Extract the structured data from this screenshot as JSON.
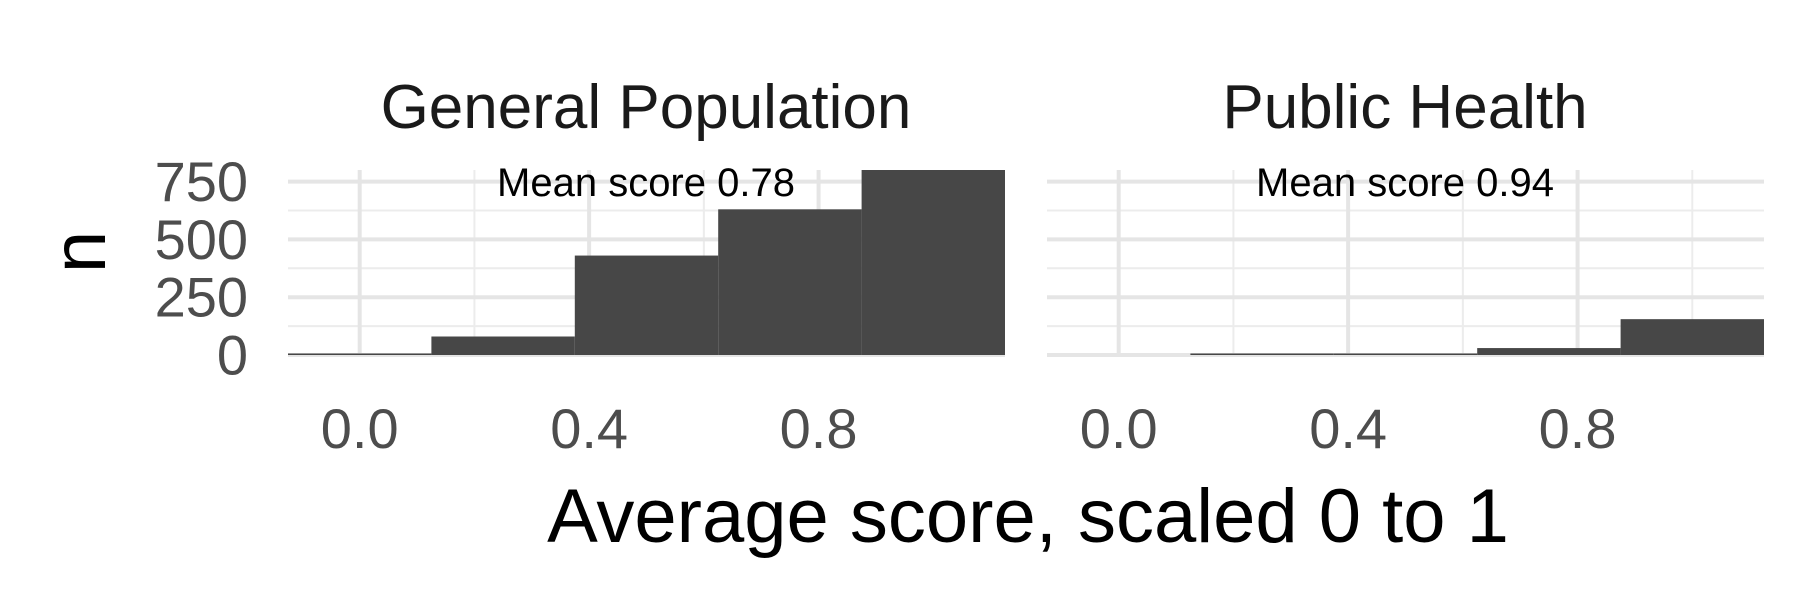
{
  "chart_data": {
    "type": "bar",
    "subtype": "faceted-histogram",
    "xlabel": "Average score, scaled 0 to 1",
    "ylabel": "n",
    "xlim": [
      -0.125,
      1.125
    ],
    "ylim": [
      0,
      800
    ],
    "x_ticks": [
      0.0,
      0.4,
      0.8
    ],
    "x_tick_labels": [
      "0.0",
      "0.4",
      "0.8"
    ],
    "y_ticks": [
      0,
      250,
      500,
      750
    ],
    "y_tick_labels": [
      "0",
      "250",
      "500",
      "750"
    ],
    "bin_width": 0.25,
    "bins": [
      {
        "x0": -0.125,
        "x1": 0.125
      },
      {
        "x0": 0.125,
        "x1": 0.375
      },
      {
        "x0": 0.375,
        "x1": 0.625
      },
      {
        "x0": 0.625,
        "x1": 0.875
      },
      {
        "x0": 0.875,
        "x1": 1.125
      }
    ],
    "grid": true,
    "bar_color": "#474747",
    "facets": [
      {
        "title": "General Population",
        "annotation": "Mean score 0.78",
        "counts": [
          4,
          80,
          430,
          630,
          800
        ]
      },
      {
        "title": "Public Health",
        "annotation": "Mean score 0.94",
        "counts": [
          0,
          4,
          4,
          30,
          155
        ]
      }
    ]
  }
}
